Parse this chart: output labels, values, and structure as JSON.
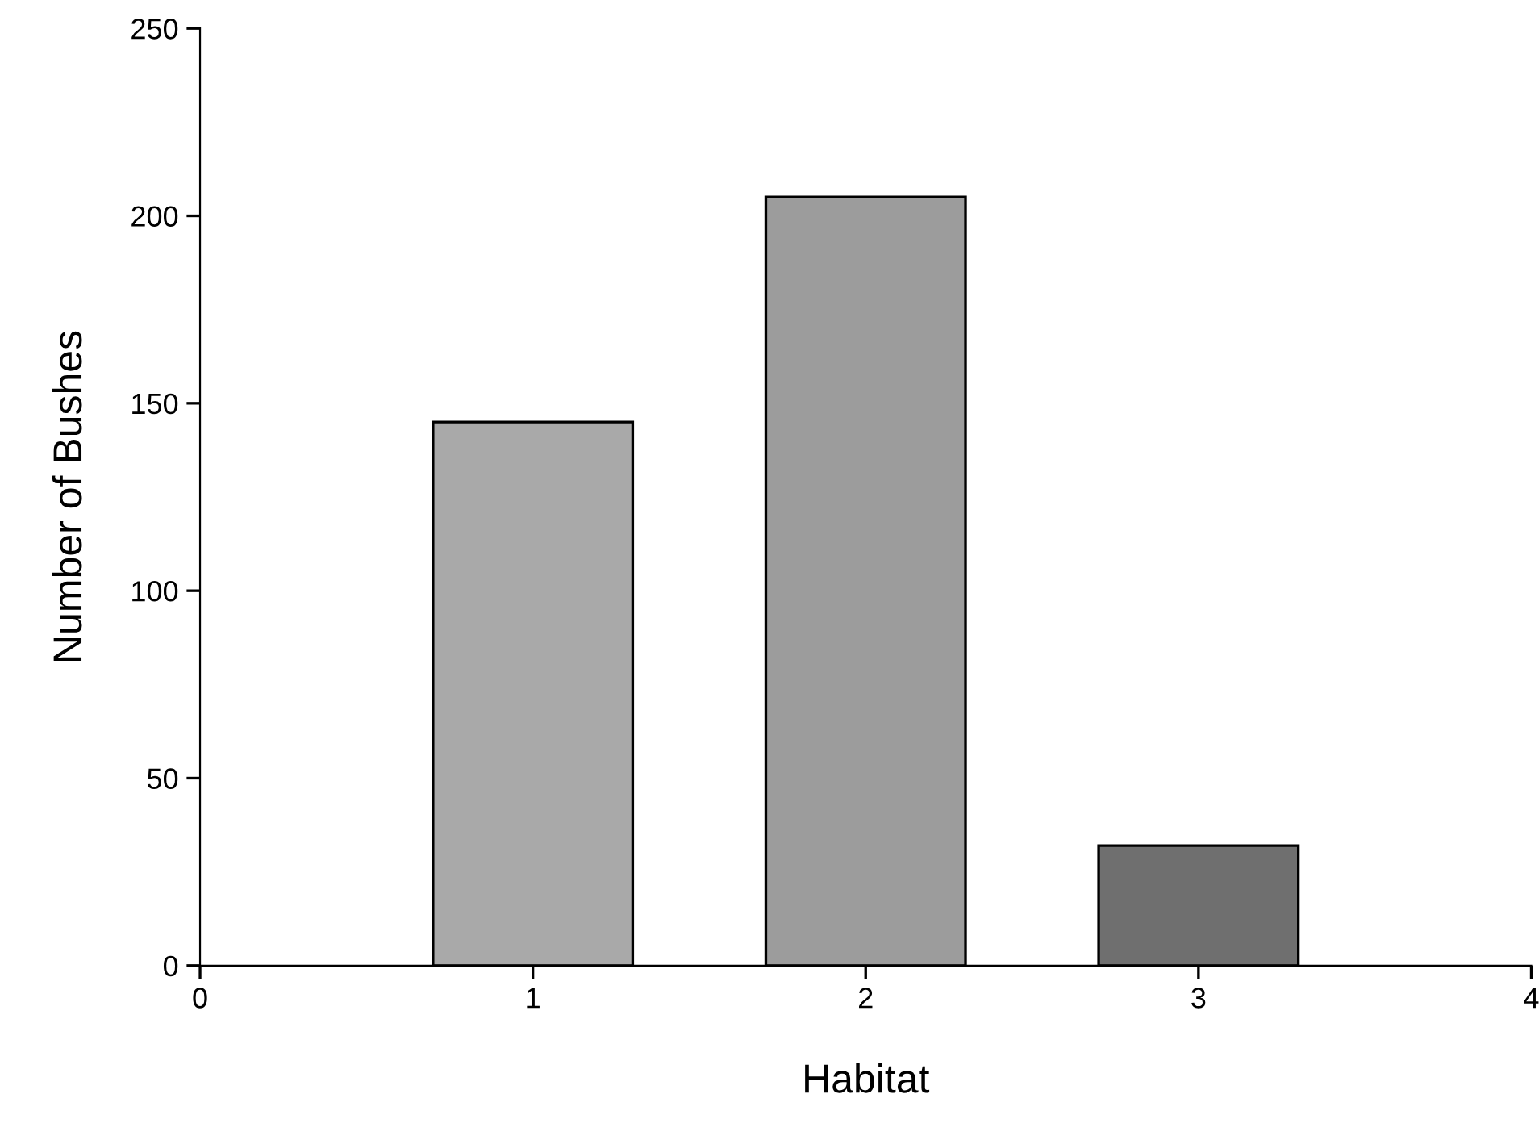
{
  "chart_data": {
    "type": "bar",
    "xlabel": "Habitat",
    "ylabel": "Number of Bushes",
    "x": [
      1,
      2,
      3
    ],
    "values": [
      145,
      205,
      32
    ],
    "colors": [
      "#a9a9a9",
      "#9c9c9c",
      "#6f6f6f"
    ],
    "xlim": [
      0,
      4
    ],
    "xticks": [
      0,
      1,
      2,
      3,
      4
    ],
    "ylim": [
      0,
      250
    ],
    "yticks": [
      0,
      50,
      100,
      150,
      200,
      250
    ],
    "grid": false,
    "legend": false
  }
}
